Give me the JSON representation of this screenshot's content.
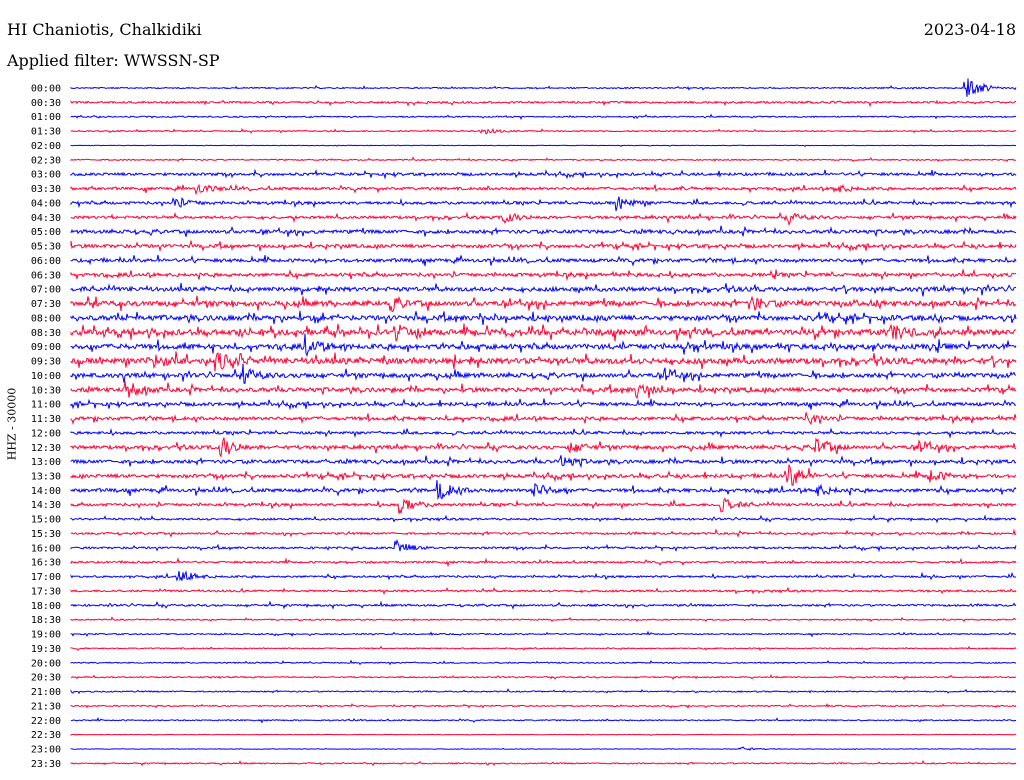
{
  "header": {
    "station": "HI Chaniotis, Chalkidiki",
    "date": "2023-04-18",
    "filter": "Applied filter: WWSSN-SP"
  },
  "chart_data": {
    "type": "line",
    "ylabel": "HHZ - 30000",
    "rows": [
      "00:00",
      "00:30",
      "01:00",
      "01:30",
      "02:00",
      "02:30",
      "03:00",
      "03:30",
      "04:00",
      "04:30",
      "05:00",
      "05:30",
      "06:00",
      "06:30",
      "07:00",
      "07:30",
      "08:00",
      "08:30",
      "09:00",
      "09:30",
      "10:00",
      "10:30",
      "11:00",
      "11:30",
      "12:00",
      "12:30",
      "13:00",
      "13:30",
      "14:00",
      "14:30",
      "15:00",
      "15:30",
      "16:00",
      "16:30",
      "17:00",
      "17:30",
      "18:00",
      "18:30",
      "19:00",
      "19:30",
      "20:00",
      "20:30",
      "21:00",
      "21:30",
      "22:00",
      "22:30",
      "23:00",
      "23:30"
    ],
    "row_minutes": 30,
    "colors": [
      "#0000ff",
      "#ff0033"
    ],
    "activity": [
      1,
      2,
      1,
      1,
      0,
      1,
      3,
      3,
      3,
      3,
      4,
      4,
      4,
      4,
      5,
      6,
      6,
      7,
      6,
      7,
      5,
      5,
      4,
      4,
      3,
      4,
      4,
      4,
      4,
      3,
      2,
      2,
      2,
      2,
      2,
      2,
      2,
      1,
      1,
      1,
      1,
      1,
      1,
      1,
      1,
      0,
      0,
      1
    ],
    "events": [
      {
        "row": 0,
        "x": 0.948,
        "amp": 13
      },
      {
        "row": 3,
        "x": 0.437,
        "amp": 3
      },
      {
        "row": 7,
        "x": 0.135,
        "amp": 5
      },
      {
        "row": 7,
        "x": 0.81,
        "amp": 4
      },
      {
        "row": 8,
        "x": 0.11,
        "amp": 5
      },
      {
        "row": 8,
        "x": 0.577,
        "amp": 7
      },
      {
        "row": 9,
        "x": 0.46,
        "amp": 5
      },
      {
        "row": 9,
        "x": 0.76,
        "amp": 4
      },
      {
        "row": 15,
        "x": 0.72,
        "amp": 6
      },
      {
        "row": 15,
        "x": 0.34,
        "amp": 5
      },
      {
        "row": 17,
        "x": 0.345,
        "amp": 7
      },
      {
        "row": 17,
        "x": 0.87,
        "amp": 6
      },
      {
        "row": 18,
        "x": 0.25,
        "amp": 7
      },
      {
        "row": 19,
        "x": 0.155,
        "amp": 8
      },
      {
        "row": 19,
        "x": 0.09,
        "amp": 5
      },
      {
        "row": 20,
        "x": 0.185,
        "amp": 6
      },
      {
        "row": 20,
        "x": 0.63,
        "amp": 5
      },
      {
        "row": 21,
        "x": 0.06,
        "amp": 7
      },
      {
        "row": 21,
        "x": 0.6,
        "amp": 7
      },
      {
        "row": 23,
        "x": 0.78,
        "amp": 5
      },
      {
        "row": 25,
        "x": 0.16,
        "amp": 10
      },
      {
        "row": 25,
        "x": 0.53,
        "amp": 5
      },
      {
        "row": 25,
        "x": 0.79,
        "amp": 9
      },
      {
        "row": 25,
        "x": 0.9,
        "amp": 5
      },
      {
        "row": 26,
        "x": 0.52,
        "amp": 5
      },
      {
        "row": 27,
        "x": 0.76,
        "amp": 12
      },
      {
        "row": 27,
        "x": 0.91,
        "amp": 6
      },
      {
        "row": 28,
        "x": 0.39,
        "amp": 9
      },
      {
        "row": 28,
        "x": 0.49,
        "amp": 8
      },
      {
        "row": 28,
        "x": 0.79,
        "amp": 5
      },
      {
        "row": 29,
        "x": 0.35,
        "amp": 8
      },
      {
        "row": 29,
        "x": 0.69,
        "amp": 6
      },
      {
        "row": 32,
        "x": 0.345,
        "amp": 7
      },
      {
        "row": 34,
        "x": 0.115,
        "amp": 7
      },
      {
        "row": 45,
        "x": 0.0,
        "amp": 0
      },
      {
        "row": 46,
        "x": 0.71,
        "amp": 2
      }
    ]
  }
}
